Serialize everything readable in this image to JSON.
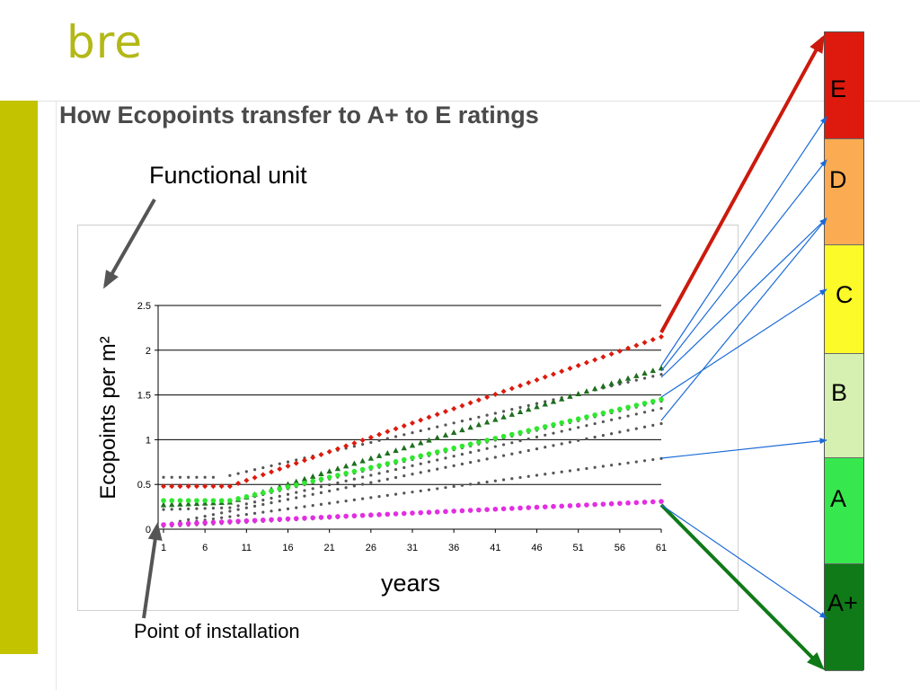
{
  "brand": {
    "logo_text": "bre"
  },
  "slide": {
    "title": "How Ecopoints transfer to A+ to E ratings",
    "functional_unit_label": "Functional unit",
    "point_of_installation_label": "Point of installation"
  },
  "colors": {
    "brand_green": "#b3b817",
    "left_bar": "#c3c300",
    "title_text": "#4a4a4a"
  },
  "ratings": [
    {
      "label": "E",
      "color": "#dd1a0d"
    },
    {
      "label": "D",
      "color": "#fbac52"
    },
    {
      "label": "C",
      "color": "#fdfa2a"
    },
    {
      "label": "B",
      "color": "#d5f0b1"
    },
    {
      "label": "A",
      "color": "#36e84e"
    },
    {
      "label": "A+",
      "color": "#0f7a17"
    }
  ],
  "chart_data": {
    "type": "line",
    "xlabel": "years",
    "ylabel": "Ecopoints per m²",
    "xlim": [
      1,
      61
    ],
    "ylim": [
      0,
      2.5
    ],
    "x_ticks": [
      1,
      6,
      11,
      16,
      21,
      26,
      31,
      36,
      41,
      46,
      51,
      56,
      61
    ],
    "y_ticks": [
      0,
      0.5,
      1,
      1.5,
      2,
      2.5
    ],
    "grid": "horizontal",
    "series": [
      {
        "style": "red-diamond",
        "color": "#dd1a0d",
        "marker": "diamond",
        "x": [
          1,
          9,
          61
        ],
        "y": [
          0.48,
          0.48,
          2.15
        ]
      },
      {
        "style": "dark-green-triangle",
        "color": "#1e6e1e",
        "marker": "triangle",
        "x": [
          1,
          9,
          61
        ],
        "y": [
          0.27,
          0.3,
          1.8
        ]
      },
      {
        "style": "light-green-dot",
        "color": "#2ee82e",
        "marker": "dot",
        "x": [
          1,
          9,
          61
        ],
        "y": [
          0.32,
          0.32,
          1.45
        ]
      },
      {
        "style": "magenta-dot",
        "color": "#e22ee2",
        "marker": "dot",
        "x": [
          1,
          61
        ],
        "y": [
          0.05,
          0.31
        ]
      },
      {
        "style": "grey-dotted",
        "color": "#555555",
        "marker": "dot",
        "x": [
          1,
          7,
          9,
          61
        ],
        "y": [
          0.58,
          0.58,
          0.6,
          1.73
        ]
      },
      {
        "style": "grey-dotted",
        "color": "#555555",
        "marker": "dot",
        "x": [
          1,
          9,
          61
        ],
        "y": [
          0.27,
          0.3,
          1.43
        ]
      },
      {
        "style": "grey-dotted",
        "color": "#555555",
        "marker": "dot",
        "x": [
          1,
          9,
          61
        ],
        "y": [
          0.22,
          0.24,
          1.35
        ]
      },
      {
        "style": "grey-dotted",
        "color": "#555555",
        "marker": "dot",
        "x": [
          1,
          61
        ],
        "y": [
          0.05,
          1.18
        ]
      },
      {
        "style": "grey-dotted",
        "color": "#555555",
        "marker": "dot",
        "x": [
          1,
          61
        ],
        "y": [
          0.04,
          0.79
        ]
      },
      {
        "style": "grey-dotted",
        "color": "#555555",
        "marker": "dot",
        "x": [
          1,
          61
        ],
        "y": [
          0.03,
          0.31
        ]
      }
    ]
  }
}
